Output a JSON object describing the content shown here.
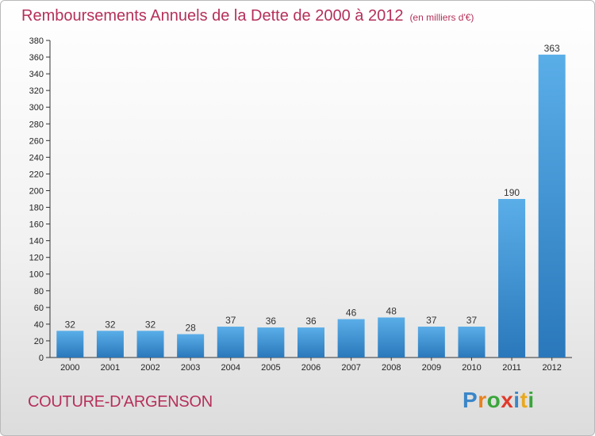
{
  "title": "Remboursements Annuels de la Dette de 2000 à 2012",
  "subtitle": "(en milliers d'€)",
  "commune": "COUTURE-D'ARGENSON",
  "logo": {
    "letters": [
      "P",
      "r",
      "o",
      "x",
      "i",
      "t",
      "i"
    ],
    "colors": [
      "#3a86c8",
      "#e8821f",
      "#3aa53a",
      "#e03a2a",
      "#3a86c8",
      "#e8a81f",
      "#3aa53a"
    ]
  },
  "colors": {
    "bar_top": "#5aaee8",
    "bar_bottom": "#2a78bb",
    "title": "#b5305a"
  },
  "chart_data": {
    "type": "bar",
    "categories": [
      "2000",
      "2001",
      "2002",
      "2003",
      "2004",
      "2005",
      "2006",
      "2007",
      "2008",
      "2009",
      "2010",
      "2011",
      "2012"
    ],
    "values": [
      32,
      32,
      32,
      28,
      37,
      36,
      36,
      46,
      48,
      37,
      37,
      190,
      363
    ],
    "title": "Remboursements Annuels de la Dette de 2000 à 2012",
    "ylim": [
      0,
      380
    ],
    "yticks": [
      0,
      20,
      40,
      60,
      80,
      100,
      120,
      140,
      160,
      180,
      200,
      220,
      240,
      260,
      280,
      300,
      320,
      340,
      360,
      380
    ],
    "grid": false,
    "legend": "none"
  }
}
